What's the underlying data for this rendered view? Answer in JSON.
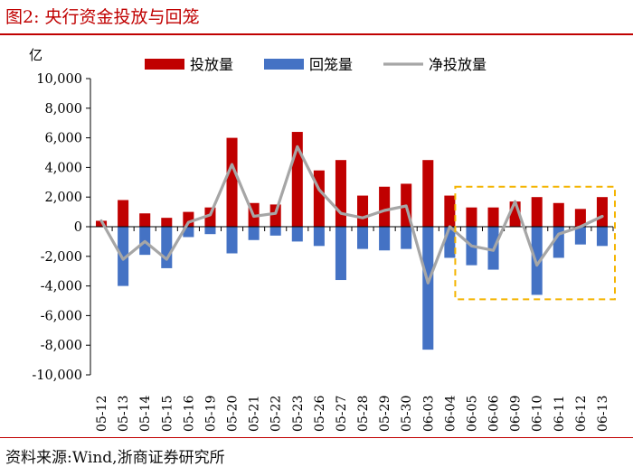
{
  "title": "图2:   央行资金投放与回笼",
  "source": "资料来源:Wind,浙商证券研究所",
  "chart_data": {
    "type": "bar",
    "y_unit_label": "亿",
    "ylim": [
      -10000,
      10000
    ],
    "yticks": [
      -10000,
      -8000,
      -6000,
      -4000,
      -2000,
      0,
      2000,
      4000,
      6000,
      8000,
      10000
    ],
    "ytick_labels": [
      "-10,000",
      "-8,000",
      "-6,000",
      "-4,000",
      "-2,000",
      "0",
      "2,000",
      "4,000",
      "6,000",
      "8,000",
      "10,000"
    ],
    "categories": [
      "05-12",
      "05-13",
      "05-14",
      "05-15",
      "05-16",
      "05-19",
      "05-20",
      "05-21",
      "05-22",
      "05-23",
      "05-26",
      "05-27",
      "05-28",
      "05-29",
      "05-30",
      "06-03",
      "06-04",
      "06-05",
      "06-06",
      "06-09",
      "06-10",
      "06-11",
      "06-12",
      "06-13"
    ],
    "legend_position": "top",
    "grid": false,
    "series": [
      {
        "name": "投放量",
        "kind": "bar",
        "color": "#c00000",
        "values": [
          400,
          1800,
          900,
          600,
          1000,
          1300,
          6000,
          1600,
          1500,
          6400,
          3800,
          4500,
          2100,
          2700,
          2900,
          4500,
          2100,
          1300,
          1300,
          1700,
          2000,
          1600,
          1200,
          2000
        ]
      },
      {
        "name": "回笼量",
        "kind": "bar",
        "color": "#4472c4",
        "values": [
          0,
          -4000,
          -1900,
          -2800,
          -700,
          -500,
          -1800,
          -900,
          -600,
          -1000,
          -1300,
          -3600,
          -1500,
          -1600,
          -1500,
          -8300,
          -2100,
          -2600,
          -2900,
          0,
          -4600,
          -2100,
          -1200,
          -1300
        ]
      },
      {
        "name": "净投放量",
        "kind": "line",
        "color": "#a6a6a6",
        "values": [
          400,
          -2200,
          -1000,
          -2200,
          300,
          800,
          4200,
          700,
          900,
          5400,
          2500,
          900,
          600,
          1100,
          1400,
          -3800,
          0,
          -1300,
          -1600,
          1700,
          -2600,
          -500,
          0,
          700
        ]
      }
    ],
    "highlight": {
      "from": "06-05",
      "to": "06-13",
      "color": "#f4b400",
      "style": "dashed"
    }
  }
}
